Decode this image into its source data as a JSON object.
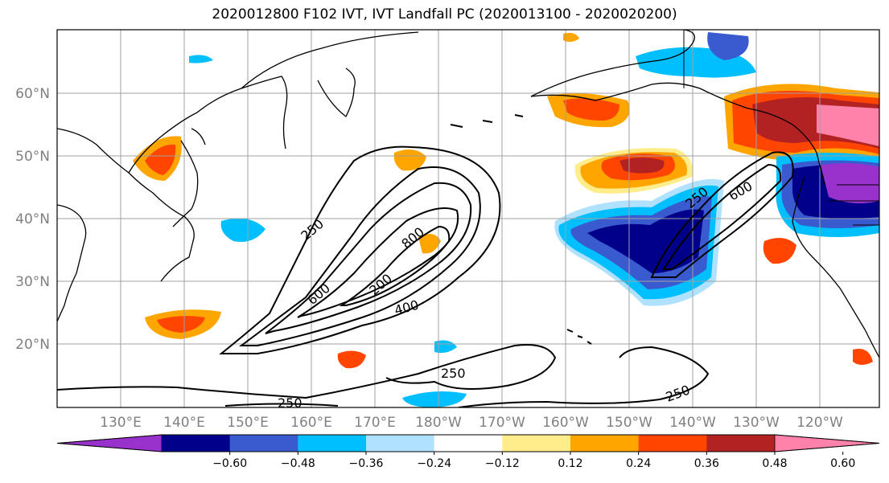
{
  "title": "2020012800 F102 IVT, IVT Landfall PC (2020013100 - 2020020200)",
  "lat_labels": [
    "20°N",
    "30°N",
    "40°N",
    "50°N",
    "60°N"
  ],
  "lon_labels": [
    "130°E",
    "140°E",
    "150°E",
    "160°E",
    "170°E",
    "180°W",
    "170°W",
    "160°W",
    "150°W",
    "140°W",
    "130°W",
    "120°W"
  ],
  "colorbar": {
    "ticks": [
      "−0.60",
      "−0.48",
      "−0.36",
      "−0.24",
      "−0.12",
      "0.12",
      "0.24",
      "0.36",
      "0.48",
      "0.60"
    ],
    "colors": [
      "#9932cc",
      "#00008b",
      "#3a5bcf",
      "#00bfff",
      "#b0e2ff",
      "#ffffff",
      "#ffec8b",
      "#ffa500",
      "#ff4500",
      "#b22222",
      "#ff82ab"
    ]
  },
  "contour_labels": [
    "250",
    "600",
    "800",
    "200",
    "400",
    "250",
    "600",
    "250",
    "250",
    "250"
  ]
}
